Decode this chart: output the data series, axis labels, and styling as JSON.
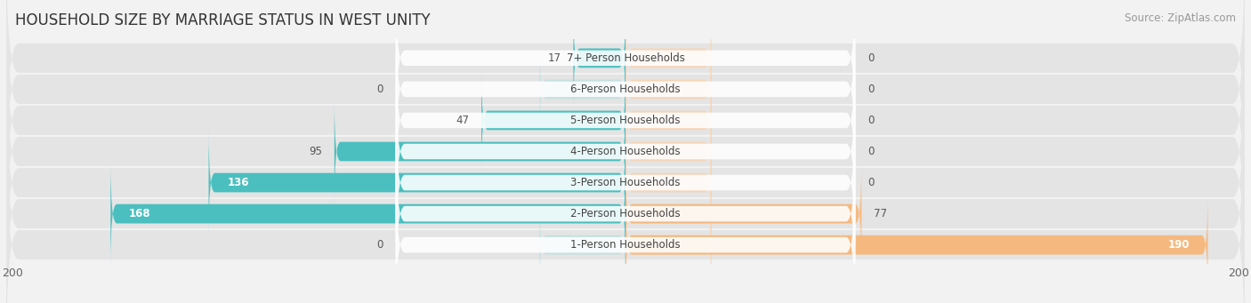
{
  "title": "HOUSEHOLD SIZE BY MARRIAGE STATUS IN WEST UNITY",
  "source": "Source: ZipAtlas.com",
  "categories": [
    "7+ Person Households",
    "6-Person Households",
    "5-Person Households",
    "4-Person Households",
    "3-Person Households",
    "2-Person Households",
    "1-Person Households"
  ],
  "family_values": [
    17,
    0,
    47,
    95,
    136,
    168,
    0
  ],
  "nonfamily_values": [
    0,
    0,
    0,
    0,
    0,
    77,
    190
  ],
  "family_color": "#4BBFBF",
  "nonfamily_color": "#F5B97F",
  "nonfamily_placeholder_color": "#F5D5B8",
  "axis_limit": 200,
  "background_color": "#f2f2f2",
  "row_bg_color": "#e4e4e4",
  "title_fontsize": 12,
  "label_fontsize": 8.5,
  "tick_fontsize": 9,
  "source_fontsize": 8.5
}
